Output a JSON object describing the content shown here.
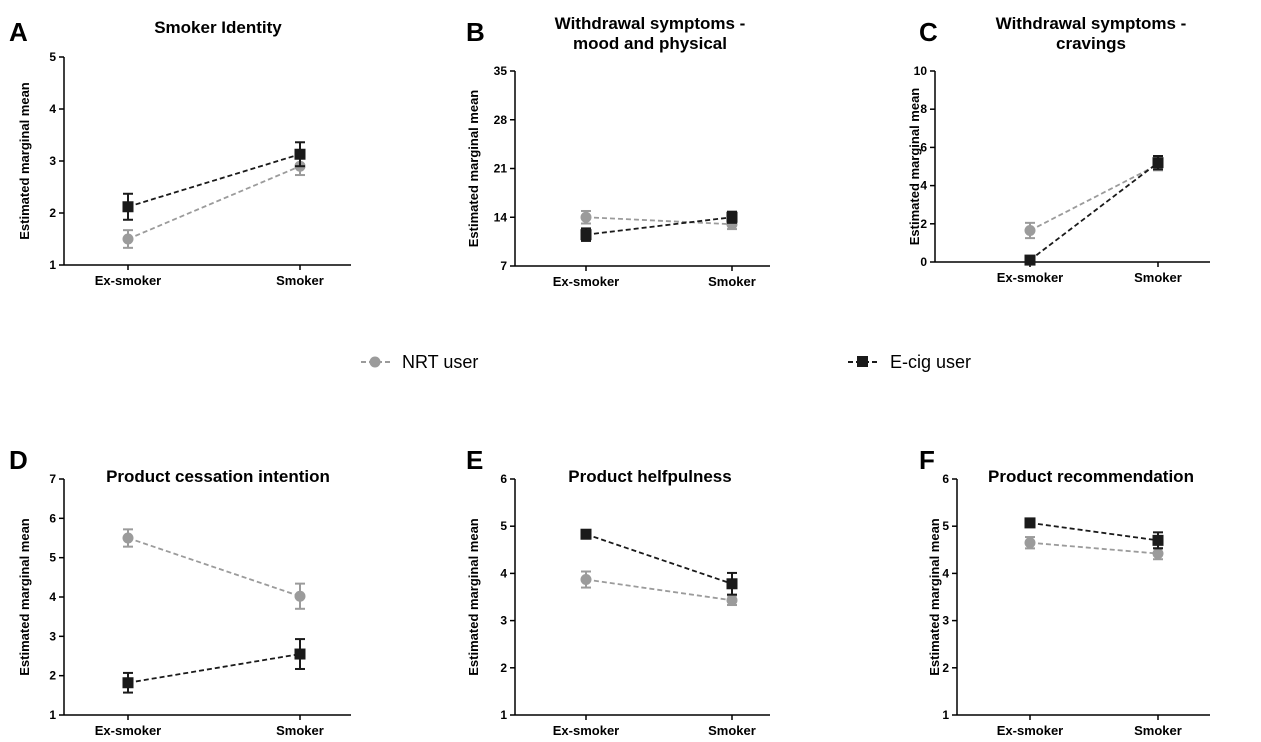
{
  "legend": {
    "nrt_label": "NRT user",
    "ecig_label": "E-cig user",
    "nrt_color": "#9b9b9b",
    "ecig_color": "#1a1a1a"
  },
  "chart_data": [
    {
      "type": "line",
      "letter": "A",
      "title": [
        "Smoker  Identity"
      ],
      "ylabel": "Estimated marginal mean",
      "categories": [
        "Ex-smoker",
        "Smoker"
      ],
      "ylim": [
        1,
        5
      ],
      "yticks": [
        1,
        2,
        3,
        4,
        5
      ],
      "series": [
        {
          "name": "NRT user",
          "marker": "circle",
          "values": [
            1.5,
            2.9
          ],
          "err": [
            0.17,
            0.17
          ]
        },
        {
          "name": "E-cig user",
          "marker": "square",
          "values": [
            2.12,
            3.13
          ],
          "err": [
            0.25,
            0.23
          ]
        }
      ]
    },
    {
      "type": "line",
      "letter": "B",
      "title": [
        "Withdrawal symptoms -",
        "mood and physical"
      ],
      "ylabel": "Estimated marginal mean",
      "categories": [
        "Ex-smoker",
        "Smoker"
      ],
      "ylim": [
        7,
        35
      ],
      "yticks": [
        7,
        14,
        21,
        28,
        35
      ],
      "series": [
        {
          "name": "NRT user",
          "marker": "circle",
          "values": [
            14.0,
            13.0
          ],
          "err": [
            0.9,
            0.7
          ]
        },
        {
          "name": "E-cig user",
          "marker": "square",
          "values": [
            11.5,
            14.0
          ],
          "err": [
            0.9,
            0.8
          ]
        }
      ]
    },
    {
      "type": "line",
      "letter": "C",
      "title": [
        "Withdrawal symptoms -",
        "cravings"
      ],
      "ylabel": "Estimated marginal mean",
      "categories": [
        "Ex-smoker",
        "Smoker"
      ],
      "ylim": [
        0,
        10
      ],
      "yticks": [
        0,
        2,
        4,
        6,
        8,
        10
      ],
      "series": [
        {
          "name": "NRT user",
          "marker": "circle",
          "values": [
            1.65,
            5.1
          ],
          "err": [
            0.4,
            0.3
          ]
        },
        {
          "name": "E-cig user",
          "marker": "square",
          "values": [
            0.1,
            5.2
          ],
          "err": [
            0.2,
            0.35
          ]
        }
      ]
    },
    {
      "type": "line",
      "letter": "D",
      "title": [
        "Product cessation intention"
      ],
      "ylabel": "Estimated marginal mean",
      "categories": [
        "Ex-smoker",
        "Smoker"
      ],
      "ylim": [
        1,
        7
      ],
      "yticks": [
        1,
        2,
        3,
        4,
        5,
        6,
        7
      ],
      "series": [
        {
          "name": "NRT user",
          "marker": "circle",
          "values": [
            5.5,
            4.02
          ],
          "err": [
            0.22,
            0.32
          ]
        },
        {
          "name": "E-cig user",
          "marker": "square",
          "values": [
            1.82,
            2.55
          ],
          "err": [
            0.25,
            0.38
          ]
        }
      ]
    },
    {
      "type": "line",
      "letter": "E",
      "title": [
        "Product helfpulness"
      ],
      "ylabel": "Estimated marginal mean",
      "categories": [
        "Ex-smoker",
        "Smoker"
      ],
      "ylim": [
        1,
        6
      ],
      "yticks": [
        1,
        2,
        3,
        4,
        5,
        6
      ],
      "series": [
        {
          "name": "NRT user",
          "marker": "circle",
          "values": [
            3.87,
            3.43
          ],
          "err": [
            0.17,
            0.1
          ]
        },
        {
          "name": "E-cig user",
          "marker": "square",
          "values": [
            4.83,
            3.78
          ],
          "err": [
            0.07,
            0.23
          ]
        }
      ]
    },
    {
      "type": "line",
      "letter": "F",
      "title": [
        "Product recommendation"
      ],
      "ylabel": "Estimated marginal mean",
      "categories": [
        "Ex-smoker",
        "Smoker"
      ],
      "ylim": [
        1,
        6
      ],
      "yticks": [
        1,
        2,
        3,
        4,
        5,
        6
      ],
      "series": [
        {
          "name": "NRT user",
          "marker": "circle",
          "values": [
            4.65,
            4.42
          ],
          "err": [
            0.12,
            0.12
          ]
        },
        {
          "name": "E-cig user",
          "marker": "square",
          "values": [
            5.07,
            4.7
          ],
          "err": [
            0.07,
            0.17
          ]
        }
      ]
    }
  ]
}
